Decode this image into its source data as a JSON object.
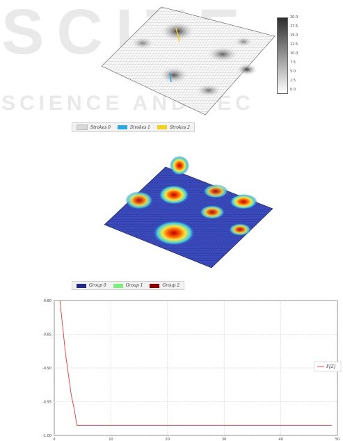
{
  "watermark": {
    "line1": "SCITE",
    "line2": "SCIENCE AND TEC"
  },
  "figure1": {
    "colorbar_ticks": [
      "20.0",
      "17.5",
      "15.0",
      "12.5",
      "10.0",
      "7.5",
      "5.0",
      "2.5",
      "0.0"
    ],
    "legend": [
      {
        "label": "Strokes 0",
        "color": "#d9d9d9"
      },
      {
        "label": "Strokes 1",
        "color": "#2aa9e0"
      },
      {
        "label": "Strokes 2",
        "color": "#f2d21b"
      }
    ]
  },
  "figure2": {
    "legend": [
      {
        "label": "Group 0",
        "color": "#1f2a8a"
      },
      {
        "label": "Group 1",
        "color": "#7cf07a"
      },
      {
        "label": "Group 2",
        "color": "#8b0000"
      }
    ]
  },
  "chart_data": {
    "type": "line",
    "title": "",
    "xlabel": "",
    "ylabel": "",
    "xlim": [
      0,
      50
    ],
    "ylim": [
      -1.0,
      -0.8
    ],
    "x_ticks": [
      "0",
      "10",
      "20",
      "30",
      "40",
      "50"
    ],
    "y_ticks": [
      "-0.80",
      "-0.85",
      "-0.90",
      "-0.95",
      "-1.00"
    ],
    "grid": true,
    "legend_position": "right",
    "series": [
      {
        "name": "F[Z]",
        "color": "#ff3030",
        "x": [
          1,
          1.5,
          2,
          2.5,
          3,
          3.5,
          4,
          5,
          10,
          20,
          30,
          40,
          49
        ],
        "y": [
          -0.8,
          -0.84,
          -0.88,
          -0.91,
          -0.94,
          -0.96,
          -0.985,
          -0.985,
          -0.985,
          -0.985,
          -0.985,
          -0.985,
          -0.985
        ]
      }
    ]
  }
}
